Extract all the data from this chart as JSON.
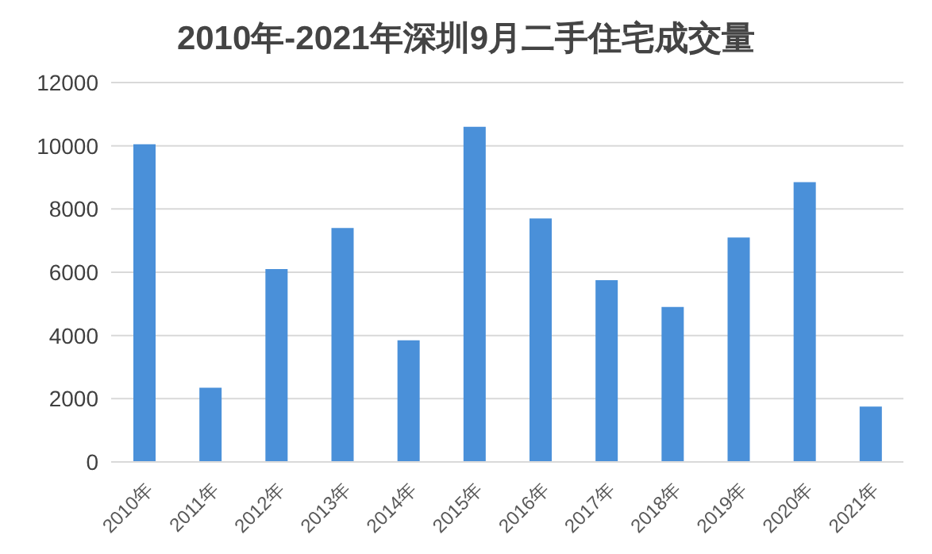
{
  "chart_data": {
    "type": "bar",
    "title": "2010年-2021年深圳9月二手住宅成交量",
    "categories": [
      "2010年",
      "2011年",
      "2012年",
      "2013年",
      "2014年",
      "2015年",
      "2016年",
      "2017年",
      "2018年",
      "2019年",
      "2020年",
      "2021年"
    ],
    "values": [
      10050,
      2350,
      6100,
      7400,
      3850,
      10600,
      7700,
      5750,
      4900,
      7100,
      8850,
      1750
    ],
    "color": "#4a90d9",
    "ylim": [
      0,
      12000
    ],
    "yticks": [
      0,
      2000,
      4000,
      6000,
      8000,
      10000,
      12000
    ],
    "grid": "y",
    "legend": false
  }
}
